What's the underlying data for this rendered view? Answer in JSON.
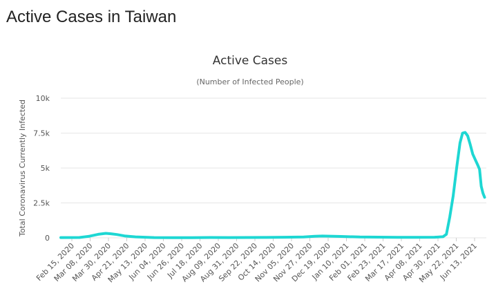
{
  "page": {
    "heading": "Active Cases in Taiwan"
  },
  "chart_data": {
    "type": "line",
    "title": "Active Cases",
    "subtitle": "(Number of Infected People)",
    "xlabel": "",
    "ylabel": "Total Coronavirus Currently Infected",
    "ylim": [
      0,
      10000
    ],
    "y_ticks": [
      {
        "value": 0,
        "label": "0"
      },
      {
        "value": 2500,
        "label": "2.5k"
      },
      {
        "value": 5000,
        "label": "5k"
      },
      {
        "value": 7500,
        "label": "7.5k"
      },
      {
        "value": 10000,
        "label": "10k"
      }
    ],
    "x_range": [
      "2020-02-15",
      "2021-06-30"
    ],
    "x_tick_labels": [
      "Feb 15, 2020",
      "Mar 08, 2020",
      "Mar 30, 2020",
      "Apr 21, 2020",
      "May 13, 2020",
      "Jun 04, 2020",
      "Jun 26, 2020",
      "Jul 18, 2020",
      "Aug 09, 2020",
      "Aug 31, 2020",
      "Sep 22, 2020",
      "Oct 14, 2020",
      "Nov 05, 2020",
      "Nov 27, 2020",
      "Dec 19, 2020",
      "Jan 10, 2021",
      "Feb 01, 2021",
      "Feb 23, 2021",
      "Mar 17, 2021",
      "Apr 08, 2021",
      "Apr 30, 2021",
      "May 22, 2021",
      "Jun 13, 2021"
    ],
    "grid": true,
    "legend": "none",
    "line_color": "#1ed7d3",
    "series": [
      {
        "points": [
          [
            "2020-02-15",
            20
          ],
          [
            "2020-03-08",
            25
          ],
          [
            "2020-03-20",
            120
          ],
          [
            "2020-03-30",
            250
          ],
          [
            "2020-04-08",
            320
          ],
          [
            "2020-04-14",
            290
          ],
          [
            "2020-04-21",
            240
          ],
          [
            "2020-04-30",
            140
          ],
          [
            "2020-05-13",
            70
          ],
          [
            "2020-06-04",
            20
          ],
          [
            "2020-06-26",
            10
          ],
          [
            "2020-07-18",
            15
          ],
          [
            "2020-08-09",
            25
          ],
          [
            "2020-08-31",
            20
          ],
          [
            "2020-09-22",
            25
          ],
          [
            "2020-10-14",
            30
          ],
          [
            "2020-11-05",
            45
          ],
          [
            "2020-11-27",
            60
          ],
          [
            "2020-12-10",
            110
          ],
          [
            "2020-12-19",
            130
          ],
          [
            "2021-01-10",
            100
          ],
          [
            "2021-02-01",
            60
          ],
          [
            "2021-02-23",
            50
          ],
          [
            "2021-03-17",
            40
          ],
          [
            "2021-04-08",
            35
          ],
          [
            "2021-04-30",
            45
          ],
          [
            "2021-05-10",
            80
          ],
          [
            "2021-05-14",
            250
          ],
          [
            "2021-05-18",
            1500
          ],
          [
            "2021-05-22",
            3000
          ],
          [
            "2021-05-26",
            5000
          ],
          [
            "2021-05-30",
            6800
          ],
          [
            "2021-06-02",
            7500
          ],
          [
            "2021-06-05",
            7550
          ],
          [
            "2021-06-08",
            7300
          ],
          [
            "2021-06-11",
            6700
          ],
          [
            "2021-06-14",
            6000
          ],
          [
            "2021-06-17",
            5600
          ],
          [
            "2021-06-20",
            5200
          ],
          [
            "2021-06-22",
            4900
          ],
          [
            "2021-06-24",
            3700
          ],
          [
            "2021-06-26",
            3200
          ],
          [
            "2021-06-28",
            2900
          ]
        ]
      }
    ]
  }
}
